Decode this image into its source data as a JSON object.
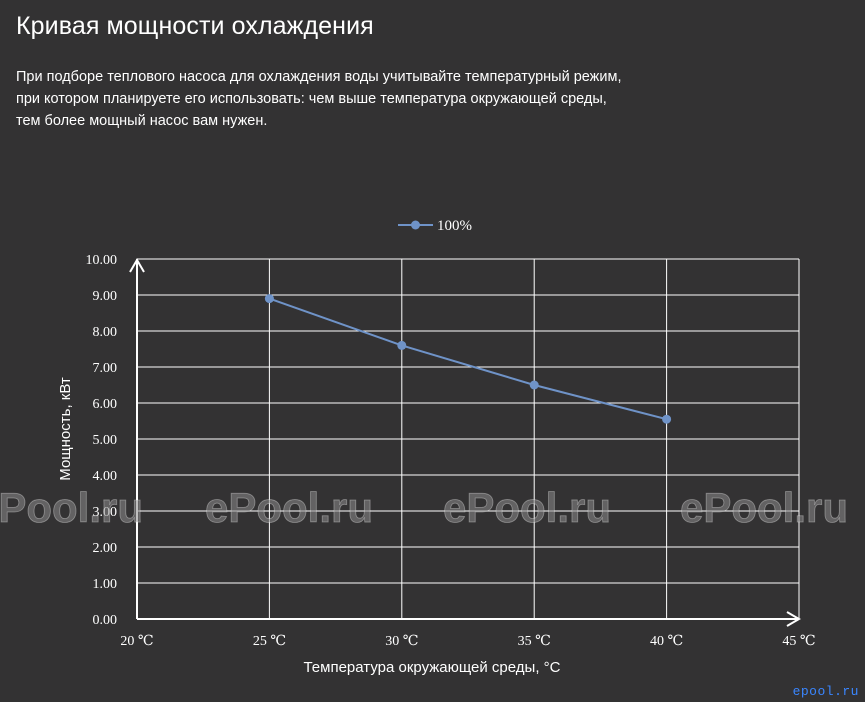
{
  "header": {
    "title": "Кривая мощности охлаждения",
    "description_lines": [
      "При подборе теплового насоса для охлаждения воды учитывайте температурный режим,",
      "при котором планируете его использовать: чем выше температура окружающей среды,",
      "тем более мощный насос вам нужен."
    ]
  },
  "watermark": "ePool.ru",
  "site_badge": "epool.ru",
  "colors": {
    "background": "#333233",
    "series": "#6f93c8",
    "grid": "#ffffff",
    "text": "#ffffff"
  },
  "chart_data": {
    "type": "line",
    "xlabel": "Температура окружающей среды, °C",
    "ylabel": "Мощность, кВт",
    "x_tick_labels": [
      "20 ℃",
      "25 ℃",
      "30 ℃",
      "35 ℃",
      "40 ℃",
      "45 ℃"
    ],
    "x_ticks": [
      20,
      25,
      30,
      35,
      40,
      45
    ],
    "y_tick_labels": [
      "0.00",
      "1.00",
      "2.00",
      "3.00",
      "4.00",
      "5.00",
      "6.00",
      "7.00",
      "8.00",
      "9.00",
      "10.00"
    ],
    "xlim": [
      20,
      45
    ],
    "ylim": [
      0,
      10
    ],
    "grid": true,
    "legend": "top-center",
    "series": [
      {
        "name": "100%",
        "x": [
          25,
          30,
          35,
          40
        ],
        "y": [
          8.9,
          7.6,
          6.5,
          5.55
        ]
      }
    ]
  }
}
